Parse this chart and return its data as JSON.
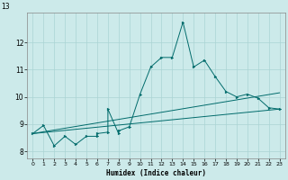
{
  "xlabel": "Humidex (Indice chaleur)",
  "bg_color": "#cceaea",
  "line_color": "#006b6b",
  "grid_color": "#aad4d4",
  "xlim": [
    -0.5,
    23.5
  ],
  "ylim": [
    7.75,
    13.1
  ],
  "yticks": [
    8,
    9,
    10,
    11,
    12
  ],
  "xtick_labels": [
    "0",
    "1",
    "2",
    "3",
    "4",
    "5",
    "6",
    "7",
    "8",
    "9",
    "10",
    "11",
    "12",
    "13",
    "14",
    "15",
    "16",
    "17",
    "18",
    "19",
    "20",
    "21",
    "22",
    "23"
  ],
  "main_x": [
    0,
    1,
    2,
    3,
    4,
    5,
    6,
    6,
    7,
    7,
    8,
    8,
    9,
    10,
    11,
    12,
    13,
    14,
    15,
    16,
    17,
    18,
    19,
    20,
    21,
    22,
    23
  ],
  "main_y": [
    8.65,
    8.95,
    8.2,
    8.55,
    8.25,
    8.55,
    8.55,
    8.65,
    8.7,
    9.55,
    8.65,
    8.75,
    8.9,
    10.1,
    11.1,
    11.45,
    11.45,
    12.75,
    11.1,
    11.35,
    10.75,
    10.2,
    10.0,
    10.1,
    9.95,
    9.6,
    9.55
  ],
  "line1_x": [
    0,
    23
  ],
  "line1_y": [
    8.65,
    9.55
  ],
  "line2_x": [
    0,
    23
  ],
  "line2_y": [
    8.65,
    10.15
  ]
}
